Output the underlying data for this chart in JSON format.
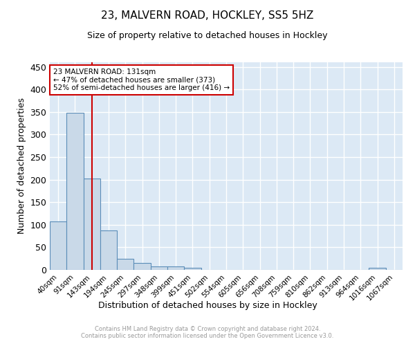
{
  "title1": "23, MALVERN ROAD, HOCKLEY, SS5 5HZ",
  "title2": "Size of property relative to detached houses in Hockley",
  "xlabel": "Distribution of detached houses by size in Hockley",
  "ylabel": "Number of detached properties",
  "bin_labels": [
    "40sqm",
    "91sqm",
    "143sqm",
    "194sqm",
    "245sqm",
    "297sqm",
    "348sqm",
    "399sqm",
    "451sqm",
    "502sqm",
    "554sqm",
    "605sqm",
    "656sqm",
    "708sqm",
    "759sqm",
    "810sqm",
    "862sqm",
    "913sqm",
    "964sqm",
    "1016sqm",
    "1067sqm"
  ],
  "bar_heights": [
    108,
    348,
    203,
    88,
    24,
    15,
    8,
    7,
    5,
    0,
    0,
    0,
    0,
    0,
    0,
    0,
    0,
    0,
    0,
    5,
    0
  ],
  "bar_color": "#c9d9e8",
  "bar_edge_color": "#5b8db8",
  "background_color": "#dce9f5",
  "grid_color": "#ffffff",
  "red_line_x": 2,
  "annotation_text": "23 MALVERN ROAD: 131sqm\n← 47% of detached houses are smaller (373)\n52% of semi-detached houses are larger (416) →",
  "annotation_box_color": "#ffffff",
  "annotation_box_edge": "#cc0000",
  "red_line_color": "#cc0000",
  "footer_text": "Contains HM Land Registry data © Crown copyright and database right 2024.\nContains public sector information licensed under the Open Government Licence v3.0.",
  "ylim": [
    0,
    460
  ],
  "yticks": [
    0,
    50,
    100,
    150,
    200,
    250,
    300,
    350,
    400,
    450
  ]
}
